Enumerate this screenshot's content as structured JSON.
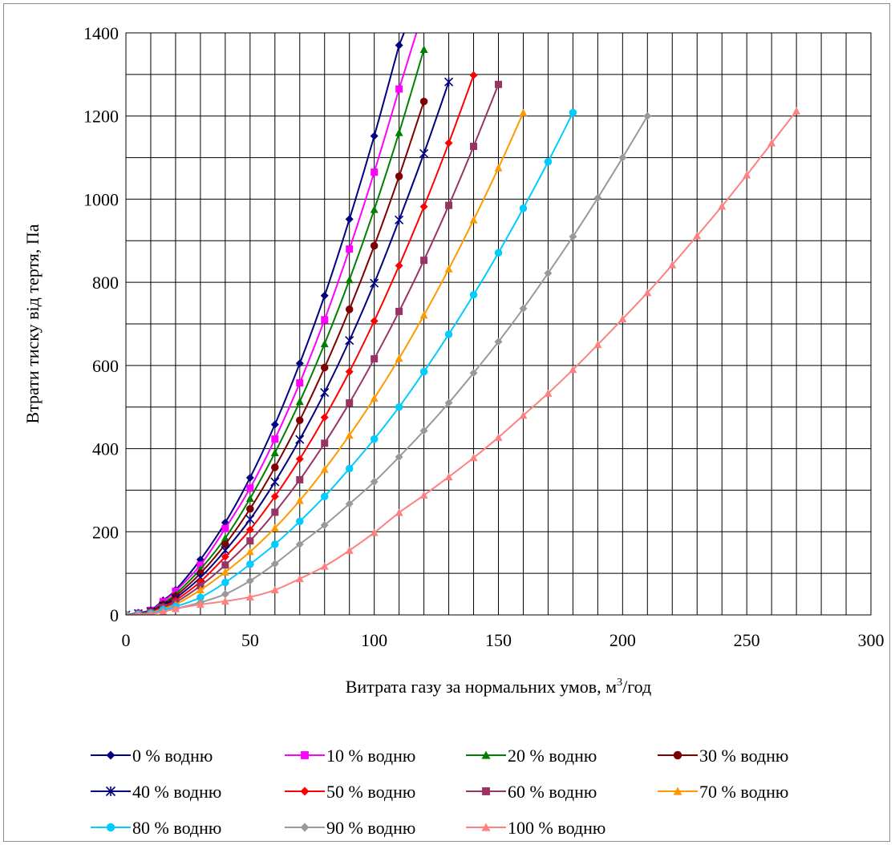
{
  "chart_data": {
    "type": "line",
    "title": "",
    "xlabel": "Витрата газу за нормальних умов, м³/год",
    "xlabel_main": "Витрата газу за нормальних умов, м",
    "xlabel_sup": "3",
    "xlabel_tail": "/год",
    "ylabel": "Втрати тиску від тертя, Па",
    "xlim": [
      0,
      300
    ],
    "ylim": [
      0,
      1400
    ],
    "x_ticks": [
      0,
      50,
      100,
      150,
      200,
      250,
      300
    ],
    "y_ticks": [
      0,
      200,
      400,
      600,
      800,
      1000,
      1200,
      1400
    ],
    "x_tick_labels": [
      "0",
      "50",
      "100",
      "150",
      "200",
      "250",
      "300"
    ],
    "y_tick_labels": [
      "0",
      "200",
      "400",
      "600",
      "800",
      "1000",
      "1200",
      "1400"
    ],
    "grid": true,
    "legend_position": "bottom",
    "series": [
      {
        "name": "0 % водню",
        "color": "#000080",
        "marker": "diamond",
        "x": [
          0,
          5,
          10,
          15,
          20,
          30,
          40,
          50,
          60,
          70,
          80,
          90,
          100,
          110
        ],
        "y": [
          0,
          5,
          12,
          35,
          60,
          133,
          222,
          330,
          458,
          605,
          768,
          952,
          1152,
          1370
        ]
      },
      {
        "name": "10 % водню",
        "color": "#FF00FF",
        "marker": "square",
        "x": [
          0,
          5,
          10,
          15,
          20,
          30,
          40,
          50,
          60,
          70,
          80,
          90,
          100,
          110
        ],
        "y": [
          0,
          4,
          11,
          32,
          57,
          120,
          208,
          305,
          423,
          558,
          710,
          880,
          1065,
          1265
        ]
      },
      {
        "name": "20 % водню",
        "color": "#008000",
        "marker": "triangle",
        "x": [
          0,
          5,
          10,
          15,
          20,
          30,
          40,
          50,
          60,
          70,
          80,
          90,
          100,
          110,
          120
        ],
        "y": [
          0,
          4,
          10,
          28,
          50,
          110,
          185,
          280,
          390,
          513,
          652,
          806,
          975,
          1160,
          1360
        ]
      },
      {
        "name": "30 % водню",
        "color": "#800000",
        "marker": "circle",
        "x": [
          0,
          5,
          10,
          15,
          20,
          30,
          40,
          50,
          60,
          70,
          80,
          90,
          100,
          110,
          120
        ],
        "y": [
          0,
          3,
          9,
          25,
          45,
          100,
          170,
          255,
          355,
          468,
          595,
          735,
          888,
          1055,
          1235
        ]
      },
      {
        "name": "40 % водню",
        "color": "#000080",
        "marker": "star",
        "x": [
          0,
          5,
          10,
          15,
          20,
          30,
          40,
          50,
          60,
          70,
          80,
          90,
          100,
          110,
          120,
          130
        ],
        "y": [
          0,
          3,
          8,
          22,
          40,
          90,
          155,
          230,
          320,
          422,
          535,
          660,
          798,
          950,
          1110,
          1282
        ]
      },
      {
        "name": "50 % водню",
        "color": "#FF0000",
        "marker": "diamond",
        "x": [
          0,
          5,
          10,
          15,
          20,
          30,
          40,
          50,
          60,
          70,
          80,
          90,
          100,
          110,
          120,
          130,
          140
        ],
        "y": [
          0,
          3,
          7,
          20,
          35,
          80,
          140,
          205,
          285,
          375,
          475,
          585,
          707,
          840,
          982,
          1135,
          1298
        ]
      },
      {
        "name": "60 % водню",
        "color": "#993366",
        "marker": "square",
        "x": [
          0,
          5,
          10,
          15,
          20,
          30,
          40,
          50,
          60,
          70,
          80,
          90,
          100,
          110,
          120,
          130,
          140,
          150
        ],
        "y": [
          0,
          2,
          6,
          18,
          30,
          70,
          120,
          178,
          247,
          325,
          413,
          510,
          616,
          730,
          853,
          985,
          1127,
          1276
        ]
      },
      {
        "name": "70 % водню",
        "color": "#FF9900",
        "marker": "triangle",
        "x": [
          0,
          5,
          10,
          15,
          20,
          30,
          40,
          50,
          60,
          70,
          80,
          90,
          100,
          110,
          120,
          130,
          140,
          150,
          160
        ],
        "y": [
          0,
          2,
          5,
          15,
          25,
          60,
          103,
          152,
          209,
          275,
          350,
          432,
          521,
          617,
          721,
          832,
          950,
          1075,
          1208
        ]
      },
      {
        "name": "80 % водню",
        "color": "#00CCFF",
        "marker": "circle",
        "x": [
          0,
          5,
          10,
          15,
          20,
          30,
          40,
          50,
          60,
          70,
          80,
          90,
          100,
          110,
          120,
          130,
          140,
          150,
          160,
          170,
          180
        ],
        "y": [
          0,
          2,
          4,
          12,
          20,
          42,
          78,
          122,
          170,
          225,
          285,
          352,
          423,
          500,
          585,
          675,
          770,
          871,
          978,
          1090,
          1208
        ]
      },
      {
        "name": "90 % водню",
        "color": "#999999",
        "marker": "diamond",
        "x": [
          0,
          5,
          10,
          15,
          20,
          30,
          40,
          50,
          60,
          70,
          80,
          90,
          100,
          110,
          120,
          130,
          140,
          150,
          160,
          170,
          180,
          190,
          200,
          210
        ],
        "y": [
          0,
          1,
          3,
          8,
          15,
          30,
          50,
          82,
          123,
          170,
          216,
          267,
          320,
          380,
          443,
          510,
          582,
          657,
          737,
          822,
          910,
          1003,
          1100,
          1200
        ]
      },
      {
        "name": "100 % водню",
        "color": "#FF8080",
        "marker": "triangle",
        "x": [
          0,
          5,
          10,
          15,
          20,
          30,
          40,
          50,
          60,
          70,
          80,
          90,
          100,
          110,
          120,
          130,
          140,
          150,
          160,
          170,
          180,
          190,
          200,
          210,
          220,
          230,
          240,
          250,
          260,
          270
        ],
        "y": [
          0,
          1,
          2,
          8,
          15,
          25,
          33,
          43,
          60,
          87,
          117,
          155,
          198,
          246,
          288,
          332,
          378,
          427,
          480,
          533,
          590,
          650,
          712,
          775,
          842,
          912,
          983,
          1058,
          1135,
          1212
        ]
      }
    ]
  }
}
